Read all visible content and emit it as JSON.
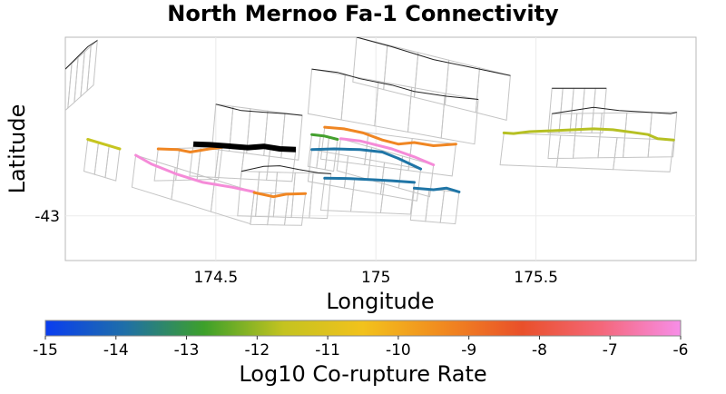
{
  "chart_data": {
    "type": "map",
    "title": "North Mernoo Fa-1 Connectivity",
    "xlabel": "Longitude",
    "ylabel": "Latitude",
    "xlim": [
      174.03,
      176.0
    ],
    "ylim": [
      -43.14,
      -42.44
    ],
    "xticks": [
      174.5,
      175,
      175.5
    ],
    "xtick_labels": [
      "174.5",
      "175",
      "175.5"
    ],
    "yticks": [
      -43
    ],
    "ytick_labels": [
      "-43"
    ],
    "grid": true,
    "colorbar": {
      "label": "Log10 Co-rupture Rate",
      "range": [
        -15,
        -6
      ],
      "ticks": [
        -15,
        -14,
        -13,
        -12,
        -11,
        -10,
        -9,
        -8,
        -7,
        -6
      ],
      "tick_labels": [
        "-15",
        "-14",
        "-13",
        "-12",
        "-11",
        "-10",
        "-9",
        "-8",
        "-7",
        "-6"
      ],
      "stops": [
        "#0a3df0",
        "#1f6fa8",
        "#3da02a",
        "#c4c320",
        "#f2c21c",
        "#f18a1f",
        "#e9502a",
        "#f4677a",
        "#f78ee8"
      ]
    },
    "target_fault": {
      "name": "North Mernoo Fa-1",
      "color": "#000000",
      "trace": [
        [
          174.43,
          -42.775
        ],
        [
          174.48,
          -42.777
        ],
        [
          174.55,
          -42.782
        ],
        [
          174.6,
          -42.786
        ],
        [
          174.65,
          -42.782
        ],
        [
          174.7,
          -42.79
        ],
        [
          174.75,
          -42.792
        ]
      ]
    },
    "connected_faults": [
      {
        "rate": -12.6,
        "color": "#c6c520",
        "trace": [
          [
            174.1,
            -42.76
          ],
          [
            174.2,
            -42.79
          ]
        ]
      },
      {
        "rate": -9.3,
        "color": "#f08623",
        "trace": [
          [
            174.32,
            -42.79
          ],
          [
            174.38,
            -42.792
          ],
          [
            174.42,
            -42.8
          ],
          [
            174.48,
            -42.79
          ],
          [
            174.52,
            -42.785
          ]
        ]
      },
      {
        "rate": -6.5,
        "color": "#f58bd8",
        "trace": [
          [
            174.25,
            -42.81
          ],
          [
            174.3,
            -42.838
          ],
          [
            174.38,
            -42.87
          ],
          [
            174.46,
            -42.895
          ],
          [
            174.55,
            -42.91
          ],
          [
            174.62,
            -42.925
          ]
        ]
      },
      {
        "rate": -9.2,
        "color": "#f08623",
        "trace": [
          [
            174.62,
            -42.927
          ],
          [
            174.68,
            -42.94
          ],
          [
            174.72,
            -42.932
          ],
          [
            174.78,
            -42.93
          ]
        ]
      },
      {
        "rate": -12.9,
        "color": "#44a02e",
        "trace": [
          [
            174.8,
            -42.745
          ],
          [
            174.84,
            -42.75
          ],
          [
            174.88,
            -42.76
          ]
        ]
      },
      {
        "rate": -9.0,
        "color": "#f08623",
        "trace": [
          [
            174.84,
            -42.722
          ],
          [
            174.9,
            -42.727
          ],
          [
            174.96,
            -42.74
          ],
          [
            175.02,
            -42.762
          ],
          [
            175.07,
            -42.775
          ],
          [
            175.12,
            -42.77
          ],
          [
            175.18,
            -42.78
          ],
          [
            175.25,
            -42.775
          ]
        ]
      },
      {
        "rate": -6.6,
        "color": "#f58bd8",
        "trace": [
          [
            174.89,
            -42.758
          ],
          [
            174.95,
            -42.765
          ],
          [
            175.05,
            -42.79
          ],
          [
            175.12,
            -42.815
          ],
          [
            175.18,
            -42.84
          ]
        ]
      },
      {
        "rate": -14.0,
        "color": "#1f75a6",
        "trace": [
          [
            174.8,
            -42.792
          ],
          [
            174.87,
            -42.79
          ],
          [
            174.95,
            -42.792
          ],
          [
            175.02,
            -42.8
          ],
          [
            175.07,
            -42.82
          ],
          [
            175.14,
            -42.853
          ]
        ]
      },
      {
        "rate": -14.2,
        "color": "#1f75a6",
        "trace": [
          [
            174.84,
            -42.882
          ],
          [
            174.92,
            -42.883
          ],
          [
            175.0,
            -42.887
          ],
          [
            175.05,
            -42.89
          ],
          [
            175.12,
            -42.895
          ]
        ]
      },
      {
        "rate": -14.1,
        "color": "#1f75a6",
        "trace": [
          [
            175.12,
            -42.913
          ],
          [
            175.18,
            -42.918
          ],
          [
            175.22,
            -42.913
          ],
          [
            175.26,
            -42.925
          ]
        ]
      },
      {
        "rate": -12.5,
        "color": "#b6c023",
        "trace": [
          [
            175.4,
            -42.74
          ],
          [
            175.43,
            -42.742
          ],
          [
            175.48,
            -42.736
          ],
          [
            175.55,
            -42.733
          ],
          [
            175.62,
            -42.73
          ],
          [
            175.68,
            -42.727
          ],
          [
            175.74,
            -42.73
          ],
          [
            175.8,
            -42.738
          ],
          [
            175.85,
            -42.745
          ],
          [
            175.88,
            -42.758
          ],
          [
            175.93,
            -42.762
          ]
        ]
      }
    ],
    "other_faults": [
      {
        "color": "#222222",
        "trace": [
          [
            174.03,
            -42.54
          ],
          [
            174.1,
            -42.47
          ],
          [
            174.13,
            -42.45
          ]
        ]
      },
      {
        "color": "#222222",
        "trace": [
          [
            174.94,
            -42.44
          ],
          [
            175.05,
            -42.47
          ],
          [
            175.18,
            -42.51
          ],
          [
            175.3,
            -42.535
          ],
          [
            175.42,
            -42.56
          ]
        ]
      },
      {
        "color": "#222222",
        "trace": [
          [
            174.8,
            -42.54
          ],
          [
            174.88,
            -42.55
          ],
          [
            174.95,
            -42.57
          ],
          [
            175.05,
            -42.59
          ],
          [
            175.12,
            -42.61
          ],
          [
            175.22,
            -42.625
          ],
          [
            175.32,
            -42.635
          ]
        ]
      },
      {
        "color": "#222222",
        "trace": [
          [
            175.55,
            -42.6
          ],
          [
            175.64,
            -42.6
          ],
          [
            175.72,
            -42.6
          ]
        ]
      },
      {
        "color": "#222222",
        "trace": [
          [
            175.55,
            -42.68
          ],
          [
            175.6,
            -42.672
          ],
          [
            175.68,
            -42.66
          ],
          [
            175.76,
            -42.67
          ],
          [
            175.85,
            -42.675
          ],
          [
            175.92,
            -42.68
          ],
          [
            175.94,
            -42.675
          ]
        ]
      },
      {
        "color": "#222222",
        "trace": [
          [
            174.5,
            -42.65
          ],
          [
            174.58,
            -42.67
          ],
          [
            174.65,
            -42.675
          ],
          [
            174.72,
            -42.68
          ],
          [
            174.77,
            -42.685
          ]
        ]
      },
      {
        "color": "#222222",
        "trace": [
          [
            174.58,
            -42.86
          ],
          [
            174.65,
            -42.845
          ],
          [
            174.7,
            -42.843
          ],
          [
            174.76,
            -42.855
          ],
          [
            174.82,
            -42.865
          ],
          [
            174.86,
            -42.868
          ]
        ]
      }
    ]
  }
}
